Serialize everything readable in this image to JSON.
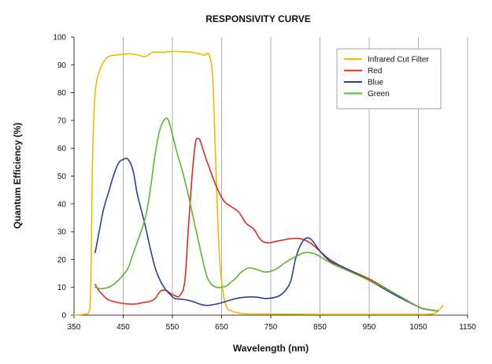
{
  "chart_data": {
    "type": "line",
    "title": "RESPONSIVITY CURVE",
    "xlabel": "Wavelength (nm)",
    "ylabel": "Quantum Efficiency (%)",
    "xlim": [
      350,
      1150
    ],
    "ylim": [
      0,
      100
    ],
    "xticks": [
      350,
      450,
      550,
      650,
      750,
      850,
      950,
      1050,
      1150
    ],
    "yticks": [
      0,
      10,
      20,
      30,
      40,
      50,
      60,
      70,
      80,
      90,
      100
    ],
    "grid": "vertical",
    "legend_position": "top-right",
    "series": [
      {
        "name": "Infrared Cut Filter",
        "color": "#f5b800",
        "points": [
          [
            350,
            0
          ],
          [
            370,
            0.3
          ],
          [
            380,
            1
          ],
          [
            383,
            5
          ],
          [
            385,
            20
          ],
          [
            387,
            50
          ],
          [
            390,
            70
          ],
          [
            393,
            80
          ],
          [
            397,
            85
          ],
          [
            402,
            88
          ],
          [
            410,
            91
          ],
          [
            420,
            93
          ],
          [
            435,
            93.5
          ],
          [
            450,
            93.8
          ],
          [
            465,
            94
          ],
          [
            480,
            93.5
          ],
          [
            495,
            93
          ],
          [
            510,
            94.5
          ],
          [
            530,
            94.5
          ],
          [
            550,
            94.8
          ],
          [
            570,
            94.7
          ],
          [
            590,
            94.5
          ],
          [
            605,
            94
          ],
          [
            615,
            93.5
          ],
          [
            625,
            93.5
          ],
          [
            632,
            85
          ],
          [
            637,
            60
          ],
          [
            642,
            35
          ],
          [
            647,
            18
          ],
          [
            653,
            8
          ],
          [
            660,
            3
          ],
          [
            670,
            1.5
          ],
          [
            685,
            0.8
          ],
          [
            700,
            0.5
          ],
          [
            750,
            0.4
          ],
          [
            850,
            0.3
          ],
          [
            950,
            0.3
          ],
          [
            1050,
            0.3
          ],
          [
            1080,
            0.5
          ],
          [
            1090,
            1.5
          ],
          [
            1100,
            3.5
          ]
        ]
      },
      {
        "name": "Red",
        "color": "#e02b20",
        "points": [
          [
            393,
            11
          ],
          [
            400,
            9
          ],
          [
            410,
            7
          ],
          [
            420,
            5.5
          ],
          [
            440,
            4.5
          ],
          [
            460,
            4
          ],
          [
            475,
            4
          ],
          [
            490,
            4.5
          ],
          [
            505,
            5
          ],
          [
            515,
            6
          ],
          [
            525,
            8.5
          ],
          [
            535,
            9
          ],
          [
            545,
            8
          ],
          [
            555,
            7
          ],
          [
            565,
            7
          ],
          [
            575,
            12
          ],
          [
            582,
            30
          ],
          [
            590,
            50
          ],
          [
            597,
            62
          ],
          [
            603,
            63.5
          ],
          [
            608,
            62
          ],
          [
            615,
            58
          ],
          [
            625,
            53
          ],
          [
            640,
            46
          ],
          [
            655,
            41
          ],
          [
            670,
            39
          ],
          [
            685,
            37
          ],
          [
            700,
            33
          ],
          [
            715,
            31
          ],
          [
            730,
            27
          ],
          [
            745,
            26
          ],
          [
            760,
            26.5
          ],
          [
            775,
            27
          ],
          [
            790,
            27.5
          ],
          [
            810,
            27.5
          ],
          [
            830,
            26
          ],
          [
            850,
            23
          ],
          [
            870,
            20
          ],
          [
            900,
            17
          ],
          [
            950,
            13
          ],
          [
            1000,
            8
          ],
          [
            1050,
            3
          ],
          [
            1070,
            2
          ],
          [
            1090,
            1.5
          ]
        ]
      },
      {
        "name": "Blue",
        "color": "#2b3f9a",
        "points": [
          [
            393,
            22.5
          ],
          [
            400,
            29
          ],
          [
            410,
            38
          ],
          [
            420,
            44
          ],
          [
            430,
            50
          ],
          [
            440,
            54.5
          ],
          [
            450,
            56
          ],
          [
            460,
            56
          ],
          [
            470,
            52
          ],
          [
            478,
            44
          ],
          [
            485,
            39
          ],
          [
            495,
            32
          ],
          [
            505,
            24
          ],
          [
            515,
            17
          ],
          [
            525,
            12.5
          ],
          [
            535,
            9.5
          ],
          [
            545,
            7.5
          ],
          [
            555,
            6
          ],
          [
            570,
            5.7
          ],
          [
            590,
            5
          ],
          [
            605,
            4
          ],
          [
            620,
            3.5
          ],
          [
            640,
            4
          ],
          [
            660,
            5
          ],
          [
            680,
            6
          ],
          [
            700,
            6.5
          ],
          [
            720,
            6.5
          ],
          [
            740,
            6
          ],
          [
            760,
            6.5
          ],
          [
            775,
            8
          ],
          [
            790,
            12
          ],
          [
            800,
            20
          ],
          [
            810,
            25
          ],
          [
            820,
            27.5
          ],
          [
            830,
            27.5
          ],
          [
            840,
            25.5
          ],
          [
            850,
            23
          ],
          [
            870,
            19.5
          ],
          [
            900,
            17
          ],
          [
            950,
            12.5
          ],
          [
            1000,
            7.5
          ],
          [
            1050,
            3
          ],
          [
            1070,
            2
          ],
          [
            1090,
            1.5
          ]
        ]
      },
      {
        "name": "Green",
        "color": "#5db530",
        "points": [
          [
            393,
            10
          ],
          [
            405,
            9.5
          ],
          [
            420,
            10
          ],
          [
            430,
            11
          ],
          [
            440,
            12.5
          ],
          [
            450,
            14.5
          ],
          [
            460,
            17
          ],
          [
            470,
            22
          ],
          [
            480,
            27
          ],
          [
            495,
            35
          ],
          [
            505,
            45
          ],
          [
            515,
            58
          ],
          [
            525,
            67
          ],
          [
            535,
            70.5
          ],
          [
            542,
            70
          ],
          [
            550,
            65
          ],
          [
            560,
            58
          ],
          [
            570,
            52
          ],
          [
            580,
            45
          ],
          [
            590,
            37
          ],
          [
            600,
            29
          ],
          [
            610,
            21
          ],
          [
            620,
            14
          ],
          [
            630,
            11
          ],
          [
            640,
            10
          ],
          [
            650,
            10
          ],
          [
            660,
            10.5
          ],
          [
            670,
            12
          ],
          [
            680,
            13.5
          ],
          [
            690,
            15.5
          ],
          [
            705,
            17
          ],
          [
            720,
            16.5
          ],
          [
            740,
            15.5
          ],
          [
            760,
            16.5
          ],
          [
            780,
            19
          ],
          [
            800,
            21
          ],
          [
            820,
            22.5
          ],
          [
            840,
            22
          ],
          [
            860,
            20
          ],
          [
            880,
            18
          ],
          [
            900,
            16.5
          ],
          [
            950,
            12.5
          ],
          [
            1000,
            8
          ],
          [
            1050,
            3
          ],
          [
            1070,
            2
          ],
          [
            1090,
            1.5
          ]
        ]
      }
    ]
  }
}
